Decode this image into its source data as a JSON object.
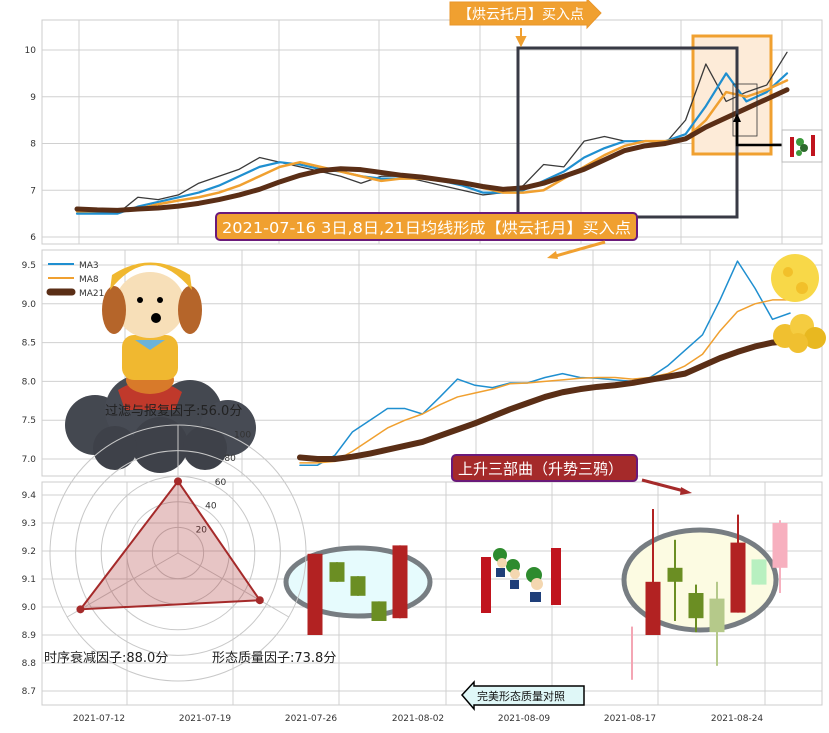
{
  "chart_data": [
    {
      "type": "line",
      "panel": "top",
      "ylim": [
        5.9,
        10.6
      ],
      "yticks": [
        "6",
        "7",
        "8",
        "9",
        "10"
      ],
      "grid": true,
      "series": [
        {
          "key": "close",
          "color": "#3a3a3a",
          "values": [
            6.55,
            6.55,
            6.5,
            6.85,
            6.8,
            6.9,
            7.15,
            7.3,
            7.45,
            7.7,
            7.6,
            7.5,
            7.4,
            7.3,
            7.15,
            7.3,
            7.3,
            7.2,
            7.1,
            7.0,
            6.9,
            6.95,
            7.1,
            7.55,
            7.5,
            8.05,
            8.15,
            8.05,
            8.05,
            8.0,
            8.5,
            9.7,
            8.9,
            9.1,
            9.25,
            9.95
          ]
        },
        {
          "key": "ma3",
          "color": "#1f8fd0",
          "values": [
            6.5,
            6.5,
            6.5,
            6.65,
            6.75,
            6.85,
            6.95,
            7.1,
            7.3,
            7.5,
            7.6,
            7.55,
            7.45,
            7.4,
            7.3,
            7.25,
            7.25,
            7.25,
            7.2,
            7.1,
            6.95,
            6.95,
            7.0,
            7.2,
            7.4,
            7.7,
            7.9,
            8.05,
            8.05,
            8.05,
            8.2,
            8.8,
            9.5,
            8.9,
            9.1,
            9.5
          ]
        },
        {
          "key": "ma8",
          "color": "#f0a030",
          "values": [
            6.55,
            6.55,
            6.55,
            6.6,
            6.7,
            6.78,
            6.85,
            6.95,
            7.1,
            7.3,
            7.5,
            7.6,
            7.5,
            7.4,
            7.3,
            7.2,
            7.25,
            7.25,
            7.2,
            7.15,
            7.05,
            6.95,
            6.95,
            7.0,
            7.25,
            7.5,
            7.75,
            7.95,
            8.05,
            8.05,
            8.1,
            8.5,
            9.1,
            9.0,
            9.15,
            9.35
          ]
        },
        {
          "key": "ma21",
          "color": "#5a2e16",
          "values": [
            6.6,
            6.58,
            6.57,
            6.6,
            6.62,
            6.66,
            6.72,
            6.8,
            6.9,
            7.02,
            7.18,
            7.32,
            7.42,
            7.46,
            7.44,
            7.38,
            7.32,
            7.28,
            7.22,
            7.16,
            7.08,
            7.02,
            7.05,
            7.15,
            7.3,
            7.45,
            7.65,
            7.85,
            7.95,
            8.0,
            8.1,
            8.35,
            8.55,
            8.75,
            8.95,
            9.15
          ]
        }
      ],
      "annotations": {
        "buy_point_callout": "【烘云托月】买入点",
        "signal_label": "2021-07-16 3日,8日,21日均线形成【烘云托月】买入点"
      }
    },
    {
      "type": "line",
      "panel": "middle",
      "ylim": [
        6.85,
        9.65
      ],
      "yticks": [
        "7.0",
        "7.5",
        "8.0",
        "8.5",
        "9.0",
        "9.5"
      ],
      "grid": true,
      "legend": {
        "placement": "top-left",
        "entries": [
          "MA3",
          "MA8",
          "MA21"
        ]
      },
      "series": [
        {
          "name": "MA3",
          "color": "#1f8fd0",
          "values": [
            6.92,
            6.92,
            7.05,
            7.35,
            7.5,
            7.65,
            7.65,
            7.58,
            7.8,
            8.03,
            7.95,
            7.92,
            7.98,
            7.98,
            8.05,
            8.1,
            8.05,
            8.04,
            8.02,
            8.0,
            8.05,
            8.2,
            8.4,
            8.6,
            9.05,
            9.55,
            9.2,
            8.8,
            8.88
          ]
        },
        {
          "name": "MA8",
          "color": "#f0a030",
          "values": [
            6.95,
            6.95,
            6.97,
            7.1,
            7.25,
            7.4,
            7.5,
            7.58,
            7.7,
            7.8,
            7.85,
            7.9,
            7.97,
            7.98,
            8.0,
            8.02,
            8.04,
            8.05,
            8.05,
            8.03,
            8.05,
            8.1,
            8.2,
            8.35,
            8.65,
            8.9,
            9.0,
            9.05,
            9.05
          ]
        },
        {
          "name": "MA21",
          "color": "#5a2e16",
          "values": [
            7.02,
            7.0,
            7.0,
            7.03,
            7.07,
            7.12,
            7.17,
            7.22,
            7.3,
            7.38,
            7.46,
            7.55,
            7.64,
            7.72,
            7.8,
            7.86,
            7.9,
            7.93,
            7.95,
            7.98,
            8.02,
            8.06,
            8.1,
            8.2,
            8.3,
            8.38,
            8.45,
            8.5,
            8.52
          ]
        }
      ],
      "annotations": {
        "pattern_label": "上升三部曲（升势三鸦）"
      }
    },
    {
      "type": "candlestick",
      "panel": "bottom",
      "ylim": [
        8.65,
        9.45
      ],
      "yticks": [
        "8.7",
        "8.8",
        "8.9",
        "9.0",
        "9.1",
        "9.2",
        "9.3",
        "9.4"
      ],
      "xticks": [
        "2021-07-12",
        "2021-07-19",
        "2021-07-26",
        "2021-08-02",
        "2021-08-09",
        "2021-08-17",
        "2021-08-24"
      ],
      "grid": true,
      "reference_pattern": [
        {
          "open": 8.9,
          "close": 9.19,
          "high": 9.19,
          "low": 8.9,
          "color": "#b22222"
        },
        {
          "open": 9.16,
          "close": 9.09,
          "high": 9.16,
          "low": 9.09,
          "color": "#6b8e23"
        },
        {
          "open": 9.11,
          "close": 9.04,
          "high": 9.11,
          "low": 9.04,
          "color": "#6b8e23"
        },
        {
          "open": 9.02,
          "close": 8.95,
          "high": 9.02,
          "low": 8.95,
          "color": "#6b8e23"
        },
        {
          "open": 8.96,
          "close": 9.22,
          "high": 9.22,
          "low": 8.96,
          "color": "#b22222"
        }
      ],
      "actual_pattern": [
        {
          "open": 8.93,
          "close": 8.93,
          "high": 8.93,
          "low": 8.74,
          "color": "#f4a6b4"
        },
        {
          "open": 8.9,
          "close": 9.09,
          "high": 9.35,
          "low": 8.9,
          "color": "#b22222"
        },
        {
          "open": 9.14,
          "close": 9.09,
          "high": 9.24,
          "low": 8.95,
          "color": "#6b8e23"
        },
        {
          "open": 9.05,
          "close": 8.96,
          "high": 9.08,
          "low": 8.91,
          "color": "#6b8e23"
        },
        {
          "open": 9.03,
          "close": 8.91,
          "high": 9.09,
          "low": 8.79,
          "color": "#b5c98a"
        },
        {
          "open": 8.98,
          "close": 9.23,
          "high": 9.33,
          "low": 8.98,
          "color": "#b22222"
        },
        {
          "open": 9.17,
          "close": 9.08,
          "high": 9.17,
          "low": 9.08,
          "color": "#b8f0c0"
        },
        {
          "open": 9.14,
          "close": 9.3,
          "high": 9.31,
          "low": 9.05,
          "color": "#f7b0bf"
        }
      ],
      "annotations": {
        "compare_label": "完美形态质量对照"
      }
    },
    {
      "type": "radar",
      "rticks": [
        "20",
        "40",
        "60",
        "80",
        "100"
      ],
      "axes": [
        {
          "label": "过滤与报复因子:56.0分",
          "value": 56.0
        },
        {
          "label": "形态质量因子:73.8分",
          "value": 73.8
        },
        {
          "label": "时序衰减因子:88.0分",
          "value": 88.0
        }
      ],
      "color": "#a52a2a"
    }
  ]
}
